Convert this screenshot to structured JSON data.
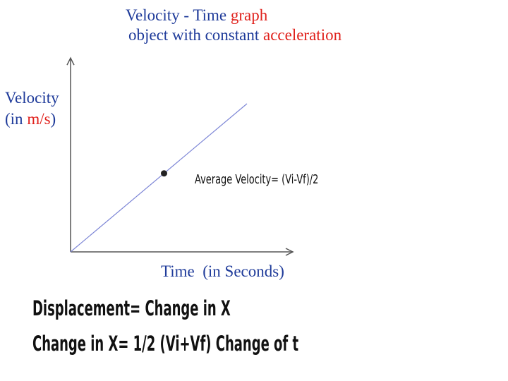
{
  "title": {
    "line1_part1": "Velocity",
    "line1_sep": " - ",
    "line1_part2": "Time",
    "line1_part3": " graph",
    "line2_part1": "object with constant ",
    "line2_part2": "acceleration"
  },
  "colors": {
    "blue_text": "#1f3b9a",
    "red_text": "#e0211c",
    "line": "#7d86d6",
    "axis": "#555555"
  },
  "chart_data": {
    "type": "line",
    "ylabel": {
      "line1": "Velocity",
      "open": "(in ",
      "unit": "m/s",
      "close": ")"
    },
    "xlabel": {
      "main": "Time",
      "paren": "(in Seconds)"
    },
    "series": [
      {
        "x": [
          0,
          1
        ],
        "y": [
          0,
          1
        ]
      }
    ],
    "xlim": [
      0,
      1.22
    ],
    "ylim": [
      0,
      1.28
    ],
    "grid": false,
    "ticks": false,
    "annotations": [
      {
        "x": 0.53,
        "y": 0.53,
        "marker": "dot",
        "text": "Average Velocity= (Vi-Vf)/2"
      }
    ]
  },
  "notes": [
    "Displacement= Change in X",
    "Change in X= 1/2 (Vi+Vf) Change of t"
  ]
}
